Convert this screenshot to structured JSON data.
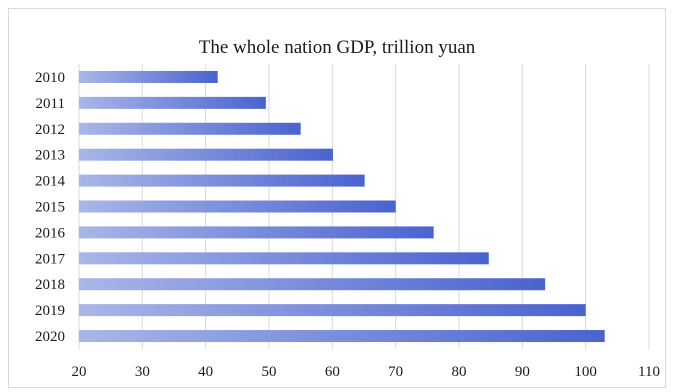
{
  "chart_data": {
    "type": "bar",
    "orientation": "horizontal",
    "title": "The whole nation GDP, trillion yuan",
    "xlabel": "",
    "ylabel": "",
    "categories": [
      "2010",
      "2011",
      "2012",
      "2013",
      "2014",
      "2015",
      "2016",
      "2017",
      "2018",
      "2019",
      "2020"
    ],
    "values": [
      41.9,
      49.5,
      55.0,
      60.1,
      65.1,
      70.0,
      76.0,
      84.7,
      93.6,
      100.0,
      103.0
    ],
    "xlim": [
      20,
      110
    ],
    "xticks": [
      "20",
      "30",
      "40",
      "50",
      "60",
      "70",
      "80",
      "90",
      "100",
      "110"
    ],
    "grid": "vertical",
    "legend": "none",
    "colors": {
      "bar_start": "#a9b6e8",
      "bar_end": "#4a63cf",
      "grid": "#d9d9d9"
    }
  }
}
